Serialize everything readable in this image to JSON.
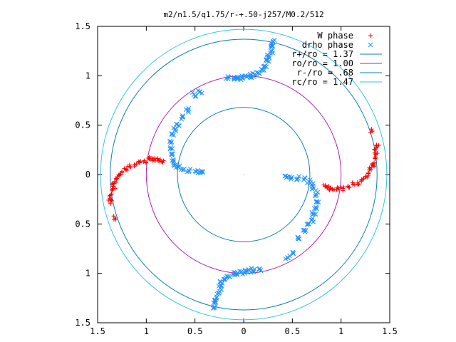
{
  "chart_data": {
    "type": "scatter",
    "title": "m2/n1.5/q1.75/r-+.50-j257/M0.2/512",
    "xlabel": "",
    "ylabel": "",
    "xlim": [
      -1.5,
      1.5
    ],
    "ylim": [
      -1.5,
      1.5
    ],
    "x_ticks": [
      {
        "value": -1.5,
        "label": "1.5"
      },
      {
        "value": -1,
        "label": "1"
      },
      {
        "value": -0.5,
        "label": "0.5"
      },
      {
        "value": 0,
        "label": "0"
      },
      {
        "value": 0.5,
        "label": "0.5"
      },
      {
        "value": 1,
        "label": "1"
      },
      {
        "value": 1.5,
        "label": "1.5"
      }
    ],
    "y_ticks": [
      {
        "value": 1.5,
        "label": "1.5"
      },
      {
        "value": 1,
        "label": "1"
      },
      {
        "value": 0.5,
        "label": "0.5"
      },
      {
        "value": 0,
        "label": "0"
      },
      {
        "value": -0.5,
        "label": "0.5"
      },
      {
        "value": -1,
        "label": "1"
      },
      {
        "value": -1.5,
        "label": "1.5"
      }
    ],
    "grid": false,
    "legend_position": "top-right",
    "circles": [
      {
        "name": "r+/ro = 1.37",
        "radius": 1.37,
        "color": "#0e7fbf"
      },
      {
        "name": "ro/ro = 1.00",
        "radius": 1.0,
        "color": "#b020b8"
      },
      {
        "name": "r-/ro = .68",
        "radius": 0.68,
        "color": "#0e7fbf"
      },
      {
        "name": "rc/ro = 1.47",
        "radius": 1.47,
        "color": "#33c6e6"
      }
    ],
    "series": [
      {
        "name": "W phase",
        "marker": "plus",
        "color": "#ff0000",
        "points": [
          [
            -1.36,
            -0.25
          ],
          [
            -1.36,
            -0.2
          ],
          [
            -1.35,
            -0.16
          ],
          [
            -1.34,
            -0.12
          ],
          [
            -1.33,
            -0.09
          ],
          [
            -1.31,
            -0.05
          ],
          [
            -1.28,
            -0.01
          ],
          [
            -1.25,
            0.02
          ],
          [
            -1.21,
            0.05
          ],
          [
            -1.17,
            0.08
          ],
          [
            -1.12,
            0.1
          ],
          [
            -1.07,
            0.12
          ],
          [
            -1.02,
            0.14
          ],
          [
            -0.97,
            0.16
          ],
          [
            -0.93,
            0.16
          ],
          [
            -0.89,
            0.16
          ],
          [
            -0.86,
            0.15
          ],
          [
            -0.84,
            0.13
          ],
          [
            -1.32,
            -0.44
          ],
          [
            -1.37,
            -0.28
          ],
          [
            1.36,
            0.25
          ],
          [
            1.36,
            0.2
          ],
          [
            1.35,
            0.16
          ],
          [
            1.34,
            0.12
          ],
          [
            1.33,
            0.09
          ],
          [
            1.31,
            0.05
          ],
          [
            1.28,
            0.01
          ],
          [
            1.25,
            -0.02
          ],
          [
            1.21,
            -0.05
          ],
          [
            1.17,
            -0.08
          ],
          [
            1.12,
            -0.1
          ],
          [
            1.07,
            -0.12
          ],
          [
            1.02,
            -0.14
          ],
          [
            0.97,
            -0.15
          ],
          [
            0.93,
            -0.15
          ],
          [
            0.89,
            -0.14
          ],
          [
            0.86,
            -0.13
          ],
          [
            0.84,
            -0.12
          ],
          [
            1.32,
            0.44
          ],
          [
            1.37,
            0.28
          ]
        ]
      },
      {
        "name": "drho phase",
        "marker": "cross",
        "color": "#1e90ff",
        "points": [
          [
            0.3,
            1.34
          ],
          [
            0.29,
            1.3
          ],
          [
            0.28,
            1.25
          ],
          [
            0.26,
            1.2
          ],
          [
            0.24,
            1.15
          ],
          [
            0.22,
            1.1
          ],
          [
            0.19,
            1.06
          ],
          [
            0.15,
            1.03
          ],
          [
            0.11,
            1.01
          ],
          [
            0.07,
            1.0
          ],
          [
            0.03,
            0.99
          ],
          [
            -0.02,
            0.98
          ],
          [
            -0.06,
            0.97
          ],
          [
            -0.1,
            0.97
          ],
          [
            -0.16,
            0.97
          ],
          [
            -0.45,
            0.84
          ],
          [
            -0.51,
            0.81
          ],
          [
            -0.57,
            0.65
          ],
          [
            -0.63,
            0.58
          ],
          [
            -0.67,
            0.5
          ],
          [
            -0.7,
            0.46
          ],
          [
            -0.72,
            0.4
          ],
          [
            -0.74,
            0.33
          ],
          [
            -0.75,
            0.27
          ],
          [
            -0.74,
            0.2
          ],
          [
            -0.72,
            0.14
          ],
          [
            -0.7,
            0.1
          ],
          [
            -0.67,
            0.07
          ],
          [
            -0.62,
            0.05
          ],
          [
            -0.56,
            0.04
          ],
          [
            -0.49,
            0.03
          ],
          [
            -0.44,
            0.03
          ],
          [
            -0.3,
            -1.34
          ],
          [
            -0.29,
            -1.3
          ],
          [
            -0.28,
            -1.25
          ],
          [
            -0.26,
            -1.2
          ],
          [
            -0.24,
            -1.15
          ],
          [
            -0.22,
            -1.1
          ],
          [
            -0.19,
            -1.06
          ],
          [
            -0.15,
            -1.03
          ],
          [
            -0.11,
            -1.01
          ],
          [
            -0.07,
            -1.0
          ],
          [
            -0.03,
            -0.99
          ],
          [
            0.02,
            -0.98
          ],
          [
            0.06,
            -0.97
          ],
          [
            0.1,
            -0.97
          ],
          [
            0.16,
            -0.96
          ],
          [
            0.45,
            -0.84
          ],
          [
            0.51,
            -0.8
          ],
          [
            0.57,
            -0.65
          ],
          [
            0.63,
            -0.58
          ],
          [
            0.67,
            -0.5
          ],
          [
            0.7,
            -0.46
          ],
          [
            0.72,
            -0.4
          ],
          [
            0.74,
            -0.33
          ],
          [
            0.75,
            -0.27
          ],
          [
            0.74,
            -0.2
          ],
          [
            0.72,
            -0.14
          ],
          [
            0.7,
            -0.1
          ],
          [
            0.67,
            -0.07
          ],
          [
            0.62,
            -0.05
          ],
          [
            0.56,
            -0.04
          ],
          [
            0.49,
            -0.03
          ],
          [
            0.44,
            -0.03
          ]
        ]
      }
    ]
  }
}
